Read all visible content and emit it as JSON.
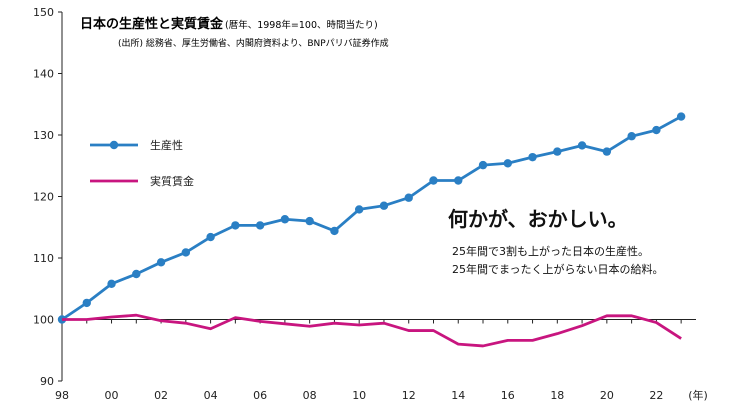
{
  "chart_data": {
    "type": "line",
    "title": "日本の生産性と実質賃金",
    "title_note": "(暦年、1998年=100、時間当たり)",
    "source": "(出所) 総務省、厚生労働省、内閣府資料より、BNPパリバ証券作成",
    "x_unit": "(年)",
    "x_ticks": [
      "98",
      "00",
      "02",
      "04",
      "06",
      "08",
      "10",
      "12",
      "14",
      "16",
      "18",
      "20",
      "22"
    ],
    "y_ticks": [
      90,
      100,
      110,
      120,
      130,
      140,
      150
    ],
    "ylim": [
      90,
      150
    ],
    "xlim": [
      1998,
      2023.6
    ],
    "x": [
      1998,
      1999,
      2000,
      2001,
      2002,
      2003,
      2004,
      2005,
      2006,
      2007,
      2008,
      2009,
      2010,
      2011,
      2012,
      2013,
      2014,
      2015,
      2016,
      2017,
      2018,
      2019,
      2020,
      2021,
      2022,
      2023
    ],
    "series": [
      {
        "name": "生産性",
        "color": "#2a7fc4",
        "markers": true,
        "values": [
          100,
          102.7,
          105.8,
          107.4,
          109.3,
          110.9,
          113.4,
          115.3,
          115.3,
          116.3,
          116.0,
          114.4,
          117.9,
          118.5,
          119.8,
          122.6,
          122.6,
          125.1,
          125.4,
          126.4,
          127.3,
          128.3,
          127.3,
          129.8,
          130.8,
          133.0
        ]
      },
      {
        "name": "実質賃金",
        "color": "#c8157f",
        "markers": false,
        "values": [
          100,
          100.0,
          100.4,
          100.7,
          99.8,
          99.4,
          98.5,
          100.3,
          99.7,
          99.3,
          98.9,
          99.4,
          99.1,
          99.4,
          98.2,
          98.2,
          96.0,
          95.7,
          96.6,
          96.6,
          97.7,
          99.0,
          100.6,
          100.6,
          99.5,
          96.9
        ]
      }
    ],
    "legend_position": "left",
    "grid": false
  },
  "annotation": {
    "headline": "何かが、おかしい。",
    "line1": "25年間で3割も上がった日本の生産性。",
    "line2": "25年間でまったく上がらない日本の給料。"
  }
}
